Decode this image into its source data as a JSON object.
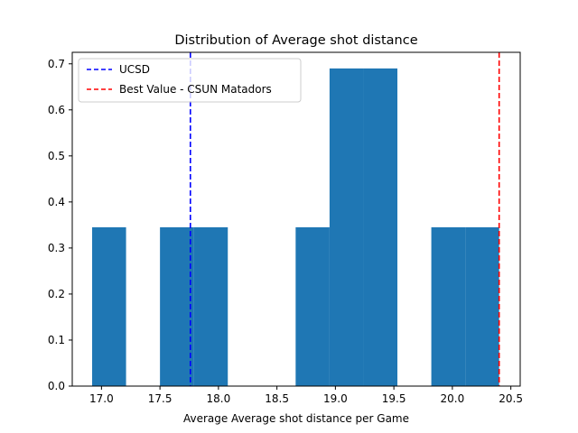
{
  "chart_data": {
    "type": "bar",
    "title": "Distribution of Average shot distance",
    "xlabel": "Average Average shot distance per Game",
    "ylabel": "",
    "xlim": [
      16.75,
      20.58
    ],
    "ylim": [
      0,
      0.725
    ],
    "grid": false,
    "legend_placement": "top-left",
    "bins": [
      {
        "x0": 16.92,
        "x1": 17.21,
        "value": 0.345
      },
      {
        "x0": 17.21,
        "x1": 17.5,
        "value": 0
      },
      {
        "x0": 17.5,
        "x1": 17.79,
        "value": 0.345
      },
      {
        "x0": 17.79,
        "x1": 18.08,
        "value": 0.345
      },
      {
        "x0": 18.08,
        "x1": 18.37,
        "value": 0
      },
      {
        "x0": 18.37,
        "x1": 18.66,
        "value": 0
      },
      {
        "x0": 18.66,
        "x1": 18.95,
        "value": 0.345
      },
      {
        "x0": 18.95,
        "x1": 19.24,
        "value": 0.69
      },
      {
        "x0": 19.24,
        "x1": 19.53,
        "value": 0.69
      },
      {
        "x0": 19.53,
        "x1": 19.82,
        "value": 0
      },
      {
        "x0": 19.82,
        "x1": 20.11,
        "value": 0.345
      },
      {
        "x0": 20.11,
        "x1": 20.4,
        "value": 0.345
      }
    ],
    "bar_color": "#1f77b4",
    "reference_lines": [
      {
        "name": "UCSD",
        "x": 17.76,
        "color": "#0000ff",
        "style": "dashed"
      },
      {
        "name": "Best Value - CSUN Matadors",
        "x": 20.4,
        "color": "#ff0000",
        "style": "dashed"
      }
    ],
    "xticks": [
      {
        "value": 17.0,
        "label": "17.0"
      },
      {
        "value": 17.5,
        "label": "17.5"
      },
      {
        "value": 18.0,
        "label": "18.0"
      },
      {
        "value": 18.5,
        "label": "18.5"
      },
      {
        "value": 19.0,
        "label": "19.0"
      },
      {
        "value": 19.5,
        "label": "19.5"
      },
      {
        "value": 20.0,
        "label": "20.0"
      },
      {
        "value": 20.5,
        "label": "20.5"
      }
    ],
    "yticks": [
      {
        "value": 0.0,
        "label": "0.0"
      },
      {
        "value": 0.1,
        "label": "0.1"
      },
      {
        "value": 0.2,
        "label": "0.2"
      },
      {
        "value": 0.3,
        "label": "0.3"
      },
      {
        "value": 0.4,
        "label": "0.4"
      },
      {
        "value": 0.5,
        "label": "0.5"
      },
      {
        "value": 0.6,
        "label": "0.6"
      },
      {
        "value": 0.7,
        "label": "0.7"
      }
    ]
  }
}
